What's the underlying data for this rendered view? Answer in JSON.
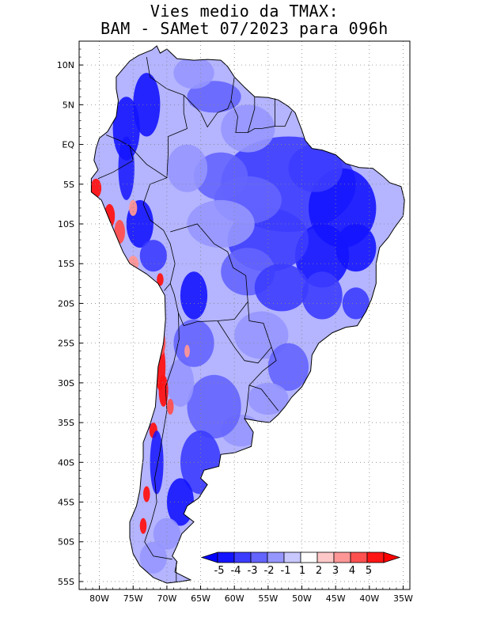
{
  "title": {
    "line1": "Vies medio da TMAX:",
    "line2": "BAM - SAMet 07/2023  para 096h"
  },
  "map": {
    "lon_range": [
      -83,
      -34
    ],
    "lat_range": [
      -56,
      13
    ],
    "lat_labels": [
      "10N",
      "5N",
      "EQ",
      "5S",
      "10S",
      "15S",
      "20S",
      "25S",
      "30S",
      "35S",
      "40S",
      "45S",
      "50S",
      "55S"
    ],
    "lat_values": [
      10,
      5,
      0,
      -5,
      -10,
      -15,
      -20,
      -25,
      -30,
      -35,
      -40,
      -45,
      -50,
      -55
    ],
    "lon_labels": [
      "80W",
      "75W",
      "70W",
      "65W",
      "60W",
      "55W",
      "50W",
      "45W",
      "40W",
      "35W"
    ],
    "lon_values": [
      -80,
      -75,
      -70,
      -65,
      -60,
      -55,
      -50,
      -45,
      -40,
      -35
    ],
    "grid": "dotted",
    "field": "TMAX bias (°C)"
  },
  "colorbar": {
    "labels": [
      "-5",
      "-4",
      "-3",
      "-2",
      "-1",
      "1",
      "2",
      "3",
      "4",
      "5"
    ],
    "colors": [
      "#1414ff",
      "#3c3cff",
      "#6464ff",
      "#9696ff",
      "#c8c8ff",
      "#ffffff",
      "#ffc8c8",
      "#ff9696",
      "#ff5050",
      "#ff1414"
    ],
    "under_color": "#0000ff",
    "over_color": "#ff0000"
  },
  "palette": {
    "land_base": "#b4b4ff",
    "ocean": "#ffffff",
    "coast": "#000000"
  }
}
